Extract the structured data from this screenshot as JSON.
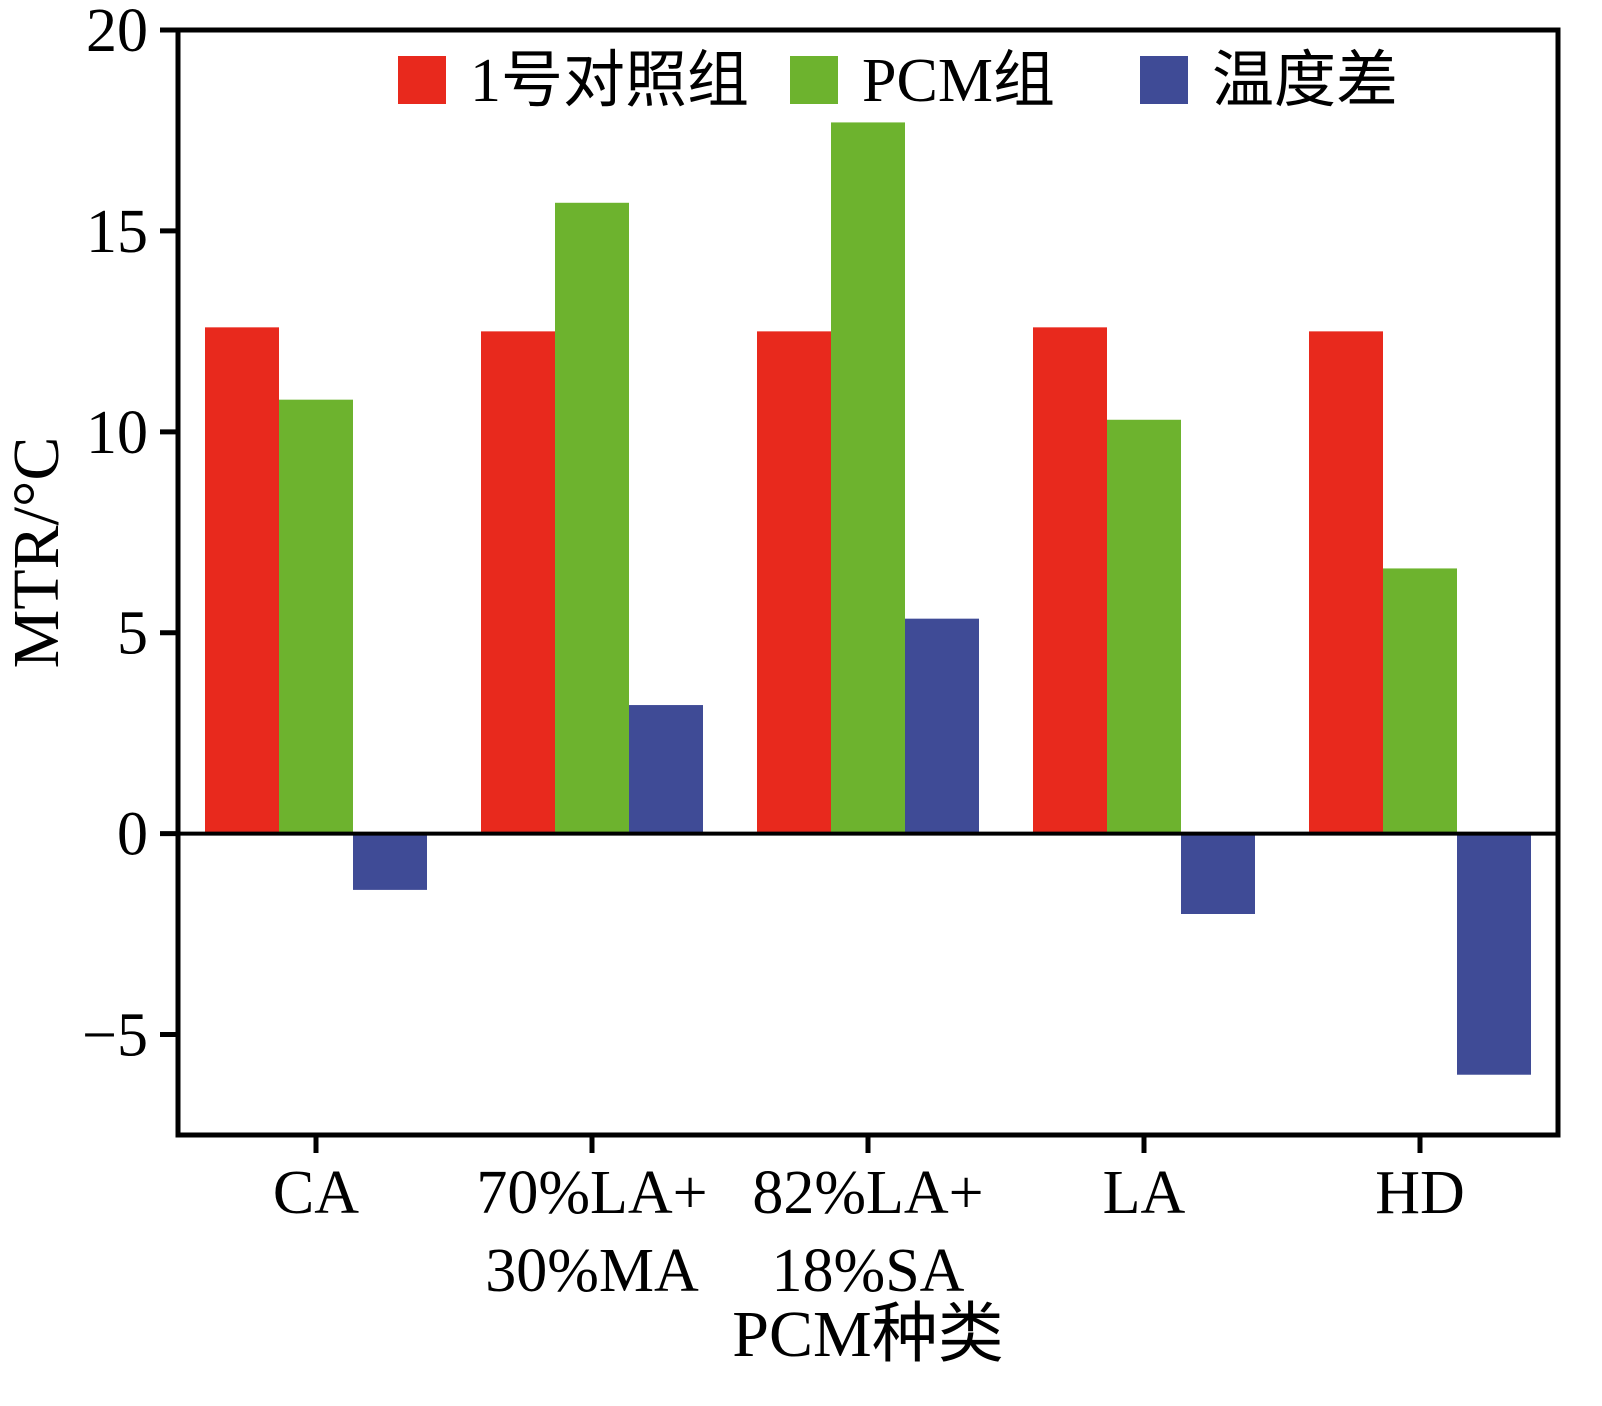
{
  "chart_data": {
    "type": "bar",
    "title": "",
    "xlabel": "PCM种类",
    "ylabel": "MTR/°C",
    "ylim": [
      -7.5,
      20
    ],
    "yticks": [
      20,
      15,
      10,
      5,
      0,
      -5
    ],
    "ytick_labels": [
      "20",
      "15",
      "10",
      "5",
      "0",
      "−5"
    ],
    "categories": [
      "CA",
      "70%LA+30%MA",
      "82%LA+18%SA",
      "LA",
      "HD"
    ],
    "category_lines": [
      [
        "CA"
      ],
      [
        "70%LA+",
        "30%MA"
      ],
      [
        "82%LA+",
        "18%SA"
      ],
      [
        "LA"
      ],
      [
        "HD"
      ]
    ],
    "series": [
      {
        "key": "control-group-1",
        "name": "1号对照组",
        "color": "#e8291d",
        "values": [
          12.6,
          12.5,
          12.5,
          12.6,
          12.5
        ]
      },
      {
        "key": "pcm-group",
        "name": "PCM组",
        "color": "#6db32e",
        "values": [
          10.8,
          15.7,
          17.7,
          10.3,
          6.6
        ]
      },
      {
        "key": "temperature-difference",
        "name": "温度差",
        "color": "#3f4b96",
        "values": [
          -1.4,
          3.2,
          5.35,
          -2.0,
          -6.0
        ]
      }
    ],
    "legend_position": "top-inside",
    "grid": false,
    "background_color": "#ffffff",
    "axis_color": "#000000"
  }
}
